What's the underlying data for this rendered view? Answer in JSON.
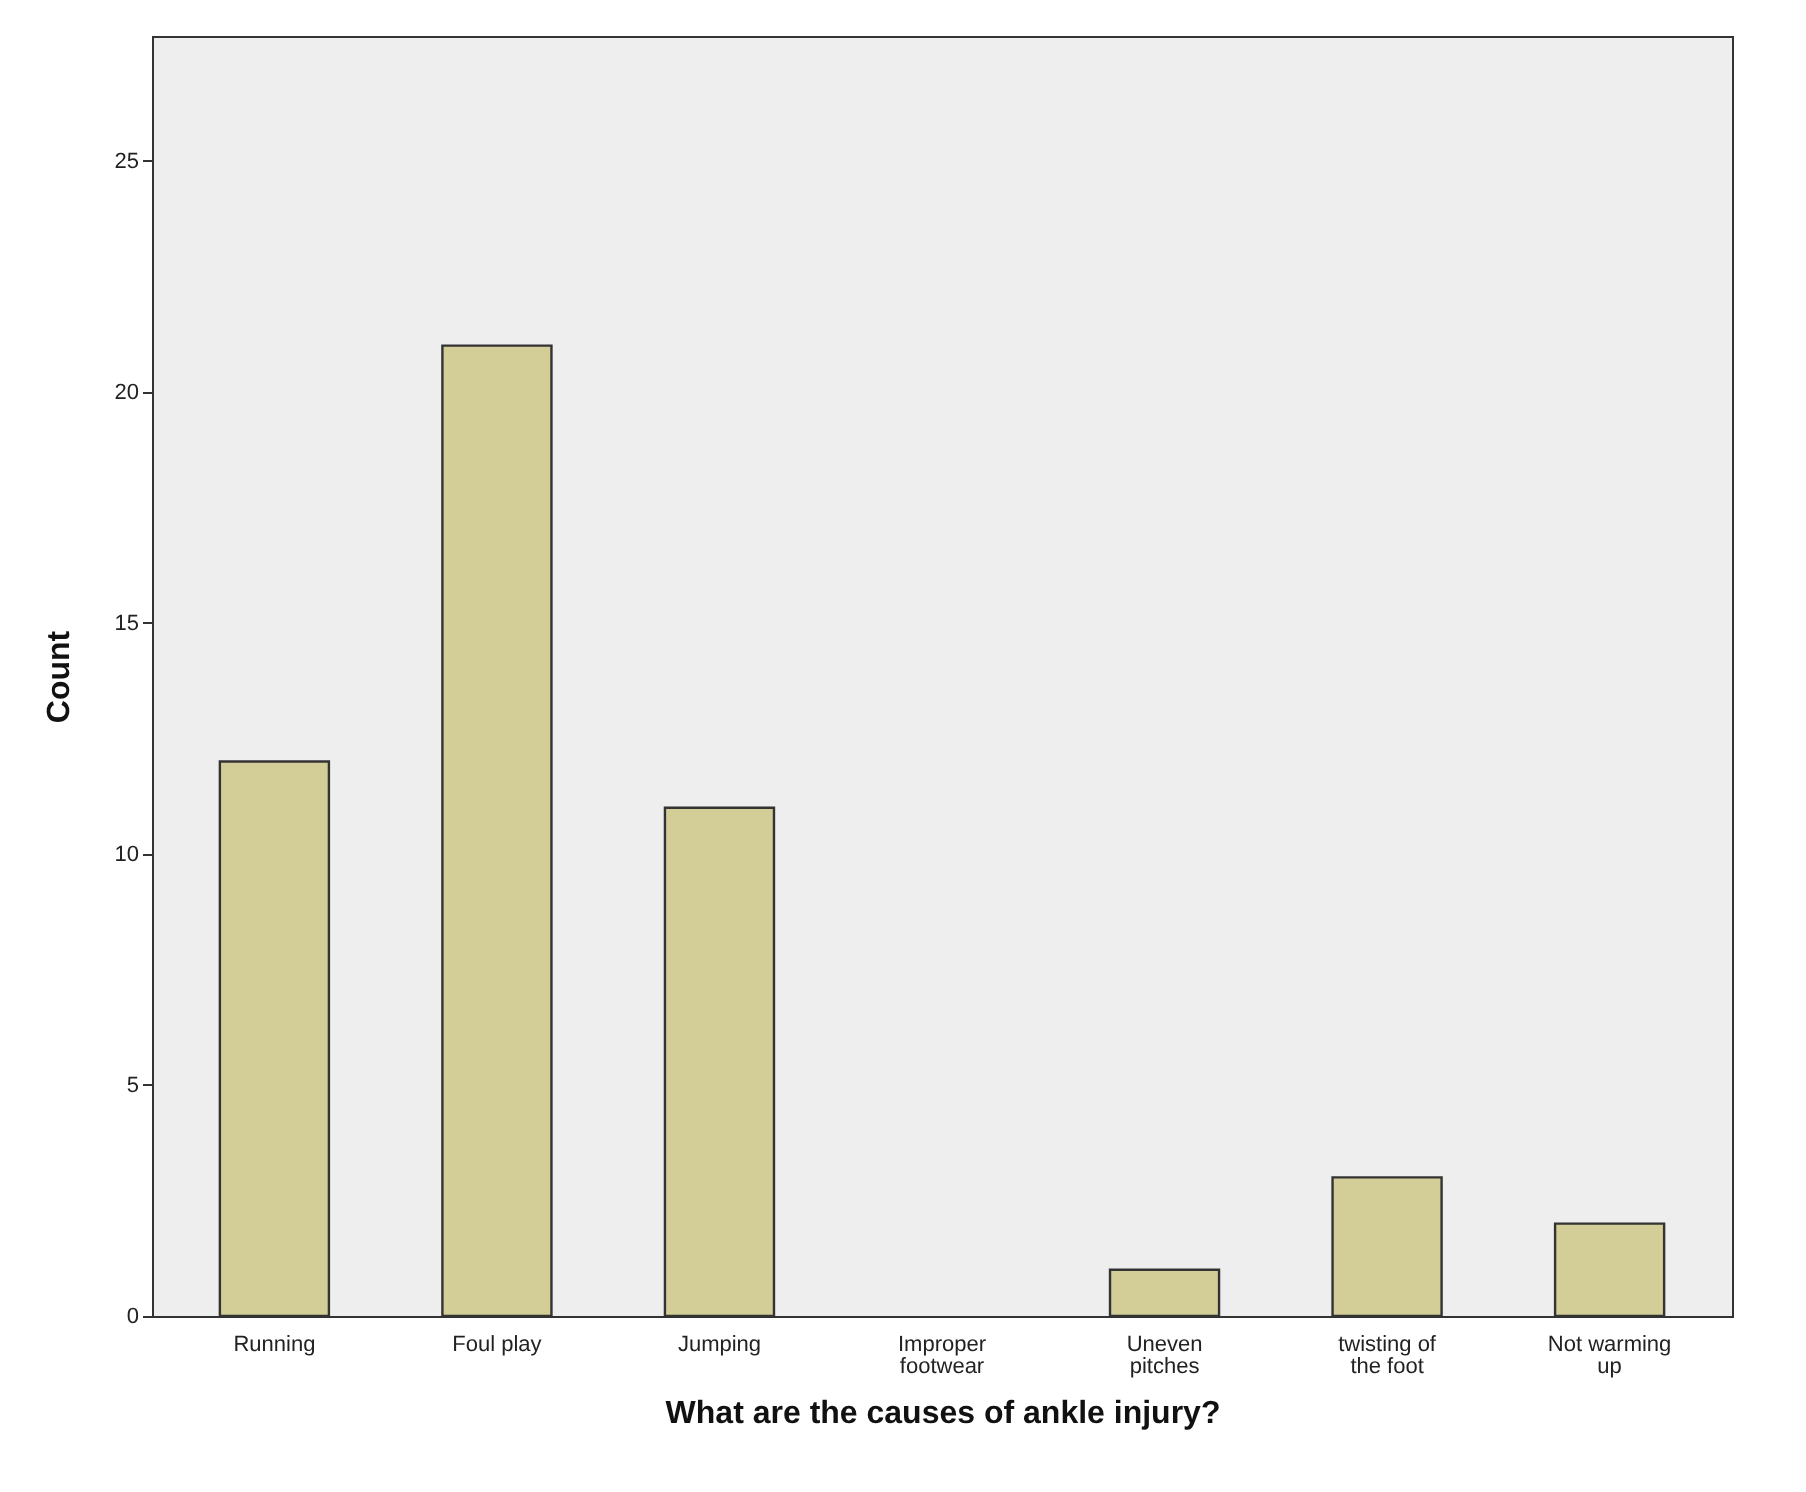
{
  "chart_data": {
    "type": "bar",
    "xlabel": "What are the causes of ankle injury?",
    "ylabel": "Count",
    "categories": [
      "Running",
      "Foul play",
      "Jumping",
      "Improper footwear",
      "Uneven pitches",
      "twisting of the foot",
      "Not warming up"
    ],
    "values": [
      12,
      21,
      11,
      0,
      1,
      3,
      2
    ],
    "color": "#d3ce97",
    "ylim": [
      0,
      27.7
    ],
    "yticks": [
      0,
      5,
      10,
      15,
      20,
      25
    ],
    "grid": false
  }
}
